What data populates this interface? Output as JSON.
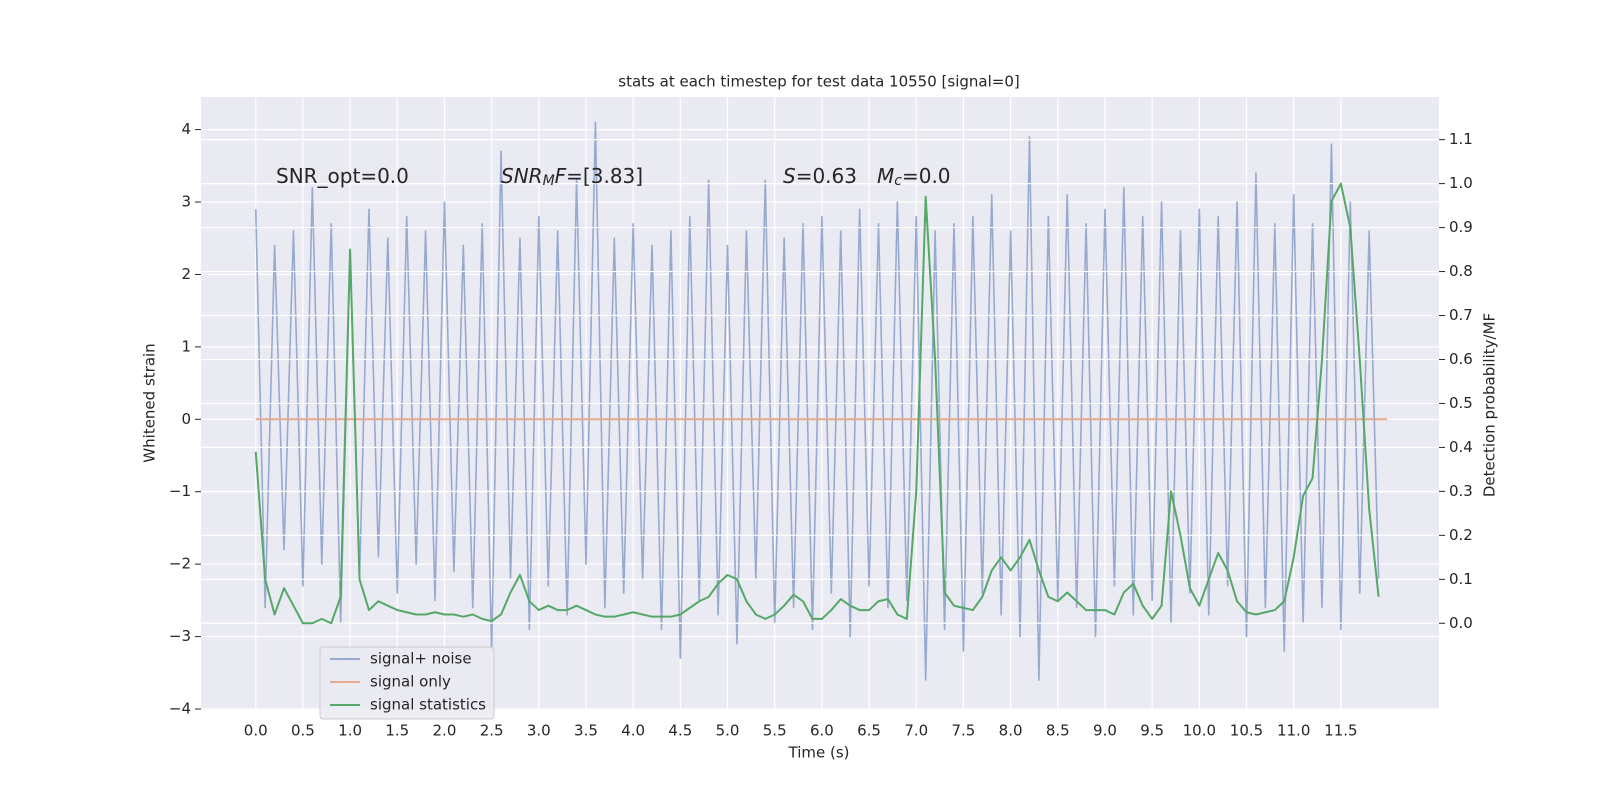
{
  "chart_data": {
    "type": "line",
    "title": "stats at each timestep for test data 10550 [signal=0]",
    "xlabel": "Time (s)",
    "ylabel": "Whitened strain",
    "y2label": "Detection probability/MF",
    "xlim": [
      -0.58,
      12.54
    ],
    "ylim": [
      -4.0,
      4.45
    ],
    "y2lim": [
      -0.195,
      1.197
    ],
    "xticks": [
      {
        "value": 0,
        "label": "0.0"
      },
      0.5,
      {
        "value": 1,
        "label": "1.0"
      },
      1.5,
      {
        "value": 2,
        "label": "2.0"
      },
      2.5,
      {
        "value": 3,
        "label": "3.0"
      },
      3.5,
      {
        "value": 4,
        "label": "4.0"
      },
      4.5,
      {
        "value": 5,
        "label": "5.0"
      },
      5.5,
      {
        "value": 6,
        "label": "6.0"
      },
      6.5,
      {
        "value": 7,
        "label": "7.0"
      },
      7.5,
      {
        "value": 8,
        "label": "8.0"
      },
      8.5,
      {
        "value": 9,
        "label": "9.0"
      },
      9.5,
      {
        "value": 10,
        "label": "10.0"
      },
      10.5,
      {
        "value": 11,
        "label": "11.0"
      },
      11.5
    ],
    "yticks": [
      {
        "value": -4,
        "label": "−4"
      },
      {
        "value": -3,
        "label": "−3"
      },
      {
        "value": -2,
        "label": "−2"
      },
      {
        "value": -1,
        "label": "−1"
      },
      0,
      1,
      2,
      3,
      4
    ],
    "y2ticks": [
      {
        "value": 0,
        "label": "0.0"
      },
      0.1,
      0.2,
      0.3,
      0.4,
      0.5,
      0.6,
      0.7,
      0.8,
      0.9,
      {
        "value": 1,
        "label": "1.0"
      },
      1.1
    ],
    "grid": true,
    "legend": "lower left",
    "annotations": [
      [
        {
          "text": "SNR_opt=0.0"
        }
      ],
      [
        {
          "text": "SNR",
          "style": "italic"
        },
        {
          "text": "M",
          "style": "sub"
        },
        {
          "text": "F",
          "style": "italic"
        },
        {
          "text": "=[3.83]"
        }
      ],
      [
        {
          "text": "S",
          "style": "italic"
        },
        {
          "text": "=0.63"
        }
      ],
      [
        {
          "text": "M",
          "style": "italic"
        },
        {
          "text": "c",
          "style": "sub"
        },
        {
          "text": "=0.0"
        }
      ]
    ],
    "x": [
      0,
      0.1,
      0.2,
      0.3,
      0.4,
      0.5,
      0.6,
      0.7,
      0.8,
      0.9,
      1,
      1.1,
      1.2,
      1.3,
      1.4,
      1.5,
      1.6,
      1.7,
      1.8,
      1.9,
      2,
      2.1,
      2.2,
      2.3,
      2.4,
      2.5,
      2.6,
      2.7,
      2.8,
      2.9,
      3,
      3.1,
      3.2,
      3.3,
      3.4,
      3.5,
      3.6,
      3.7,
      3.8,
      3.9,
      4,
      4.1,
      4.2,
      4.3,
      4.4,
      4.5,
      4.6,
      4.7,
      4.8,
      4.9,
      5,
      5.1,
      5.2,
      5.3,
      5.4,
      5.5,
      5.6,
      5.7,
      5.8,
      5.9,
      6,
      6.1,
      6.2,
      6.3,
      6.4,
      6.5,
      6.6,
      6.7,
      6.8,
      6.9,
      7,
      7.1,
      7.2,
      7.3,
      7.4,
      7.5,
      7.6,
      7.7,
      7.8,
      7.9,
      8,
      8.1,
      8.2,
      8.3,
      8.4,
      8.5,
      8.6,
      8.7,
      8.8,
      8.9,
      9,
      9.1,
      9.2,
      9.3,
      9.4,
      9.5,
      9.6,
      9.7,
      9.8,
      9.9,
      10,
      10.1,
      10.2,
      10.3,
      10.4,
      10.5,
      10.6,
      10.7,
      10.8,
      10.9,
      11,
      11.1,
      11.2,
      11.3,
      11.4,
      11.5,
      11.6,
      11.7,
      11.8,
      11.9
    ],
    "series": [
      {
        "name": "signal+ noise",
        "color": "#98a9cf",
        "values": [
          2.9,
          -2.6,
          2.4,
          -1.8,
          2.6,
          -2.3,
          3.2,
          -2.0,
          2.7,
          -2.8,
          2.3,
          -2.2,
          2.9,
          -1.9,
          2.5,
          -2.4,
          2.8,
          -2.0,
          2.6,
          -2.5,
          3.0,
          -2.1,
          2.4,
          -2.6,
          2.7,
          -3.2,
          3.7,
          -2.2,
          2.5,
          -2.9,
          2.8,
          -2.3,
          2.6,
          -2.7,
          3.3,
          -2.0,
          4.1,
          -2.6,
          2.5,
          -2.4,
          2.7,
          -2.2,
          2.4,
          -2.9,
          2.6,
          -3.3,
          2.8,
          -2.5,
          3.3,
          -2.7,
          2.4,
          -3.1,
          2.6,
          -2.2,
          3.3,
          -2.8,
          2.5,
          -2.6,
          2.7,
          -2.9,
          2.8,
          -2.4,
          2.6,
          -3.0,
          2.9,
          -2.3,
          2.7,
          -2.6,
          3.0,
          -2.5,
          2.8,
          -3.6,
          2.6,
          -2.9,
          2.7,
          -3.2,
          2.8,
          -2.4,
          3.1,
          -2.7,
          2.6,
          -3.0,
          3.9,
          -3.6,
          2.8,
          -2.5,
          3.1,
          -2.6,
          2.7,
          -3.0,
          2.9,
          -2.3,
          3.2,
          -2.7,
          2.8,
          -2.5,
          3.0,
          -2.8,
          2.6,
          -2.4,
          2.9,
          -2.7,
          2.8,
          -2.3,
          3.0,
          -3.0,
          3.4,
          -2.6,
          2.7,
          -3.2,
          3.1,
          -2.8,
          2.7,
          -2.6,
          3.8,
          -2.9,
          3.0,
          -2.4,
          2.6,
          -2.2
        ]
      },
      {
        "name": "signal only",
        "color": "#e8ab8d",
        "x": [
          0,
          11.99
        ],
        "values": [
          0,
          0
        ]
      },
      {
        "name": "signal statistics",
        "color": "#55a868",
        "axis": "y2",
        "values": [
          0.39,
          0.1,
          0.02,
          0.08,
          0.04,
          0.0,
          0.0,
          0.01,
          0.0,
          0.06,
          0.85,
          0.1,
          0.03,
          0.05,
          0.04,
          0.03,
          0.025,
          0.02,
          0.02,
          0.025,
          0.02,
          0.02,
          0.015,
          0.02,
          0.01,
          0.005,
          0.02,
          0.07,
          0.11,
          0.05,
          0.03,
          0.04,
          0.03,
          0.03,
          0.04,
          0.03,
          0.02,
          0.015,
          0.015,
          0.02,
          0.025,
          0.02,
          0.015,
          0.015,
          0.015,
          0.02,
          0.035,
          0.05,
          0.06,
          0.09,
          0.11,
          0.1,
          0.05,
          0.02,
          0.01,
          0.02,
          0.04,
          0.065,
          0.05,
          0.01,
          0.01,
          0.03,
          0.055,
          0.04,
          0.03,
          0.03,
          0.05,
          0.055,
          0.02,
          0.01,
          0.3,
          0.97,
          0.6,
          0.07,
          0.04,
          0.035,
          0.03,
          0.06,
          0.12,
          0.15,
          0.12,
          0.15,
          0.19,
          0.12,
          0.06,
          0.05,
          0.07,
          0.05,
          0.03,
          0.03,
          0.03,
          0.02,
          0.07,
          0.09,
          0.04,
          0.01,
          0.04,
          0.3,
          0.2,
          0.08,
          0.04,
          0.1,
          0.16,
          0.12,
          0.05,
          0.025,
          0.02,
          0.025,
          0.03,
          0.05,
          0.15,
          0.29,
          0.33,
          0.6,
          0.96,
          1.0,
          0.9,
          0.6,
          0.26,
          0.06
        ]
      }
    ]
  }
}
